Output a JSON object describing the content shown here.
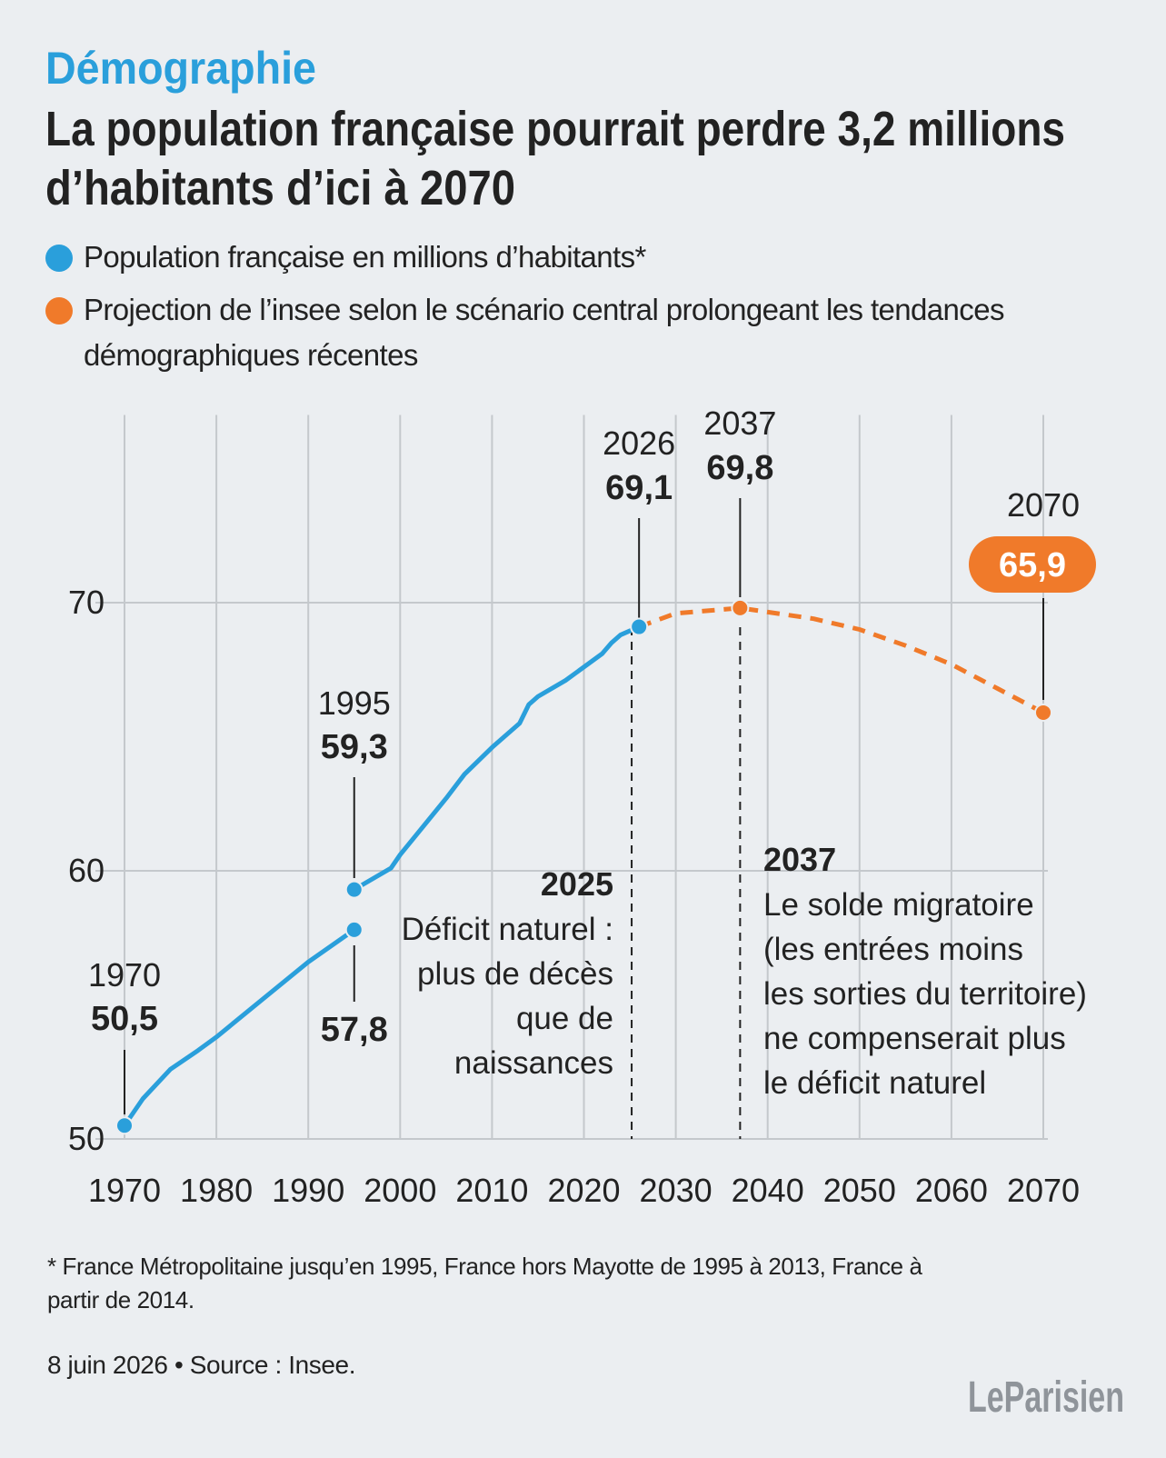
{
  "kicker": "Démographie",
  "title": [
    "La population française pourrait perdre 3,2 millions",
    "d’habitants d’ici à 2070"
  ],
  "chart_data": {
    "type": "line",
    "series": [
      {
        "name": "Population française en millions d’habitants*",
        "color": "#2a9fdb",
        "dashed": false,
        "x": [
          1970,
          1972,
          1975,
          1978,
          1980,
          1985,
          1990,
          1995,
          1995,
          1995,
          1999,
          2000,
          2005,
          2007,
          2010,
          2013,
          2014,
          2015,
          2018,
          2020,
          2022,
          2023,
          2024,
          2026
        ],
        "values": [
          50.5,
          51.5,
          52.6,
          53.3,
          53.8,
          55.2,
          56.6,
          57.8,
          null,
          59.3,
          60.1,
          60.6,
          62.7,
          63.6,
          64.6,
          65.5,
          66.2,
          66.5,
          67.1,
          67.6,
          68.1,
          68.5,
          68.8,
          69.1
        ]
      },
      {
        "name": "Projection de l’insee selon le scénario central prolongeant les tendances démographiques récentes",
        "color": "#f07a2a",
        "dashed": true,
        "x": [
          2026,
          2030,
          2037,
          2045,
          2050,
          2055,
          2060,
          2065,
          2070
        ],
        "values": [
          69.1,
          69.6,
          69.8,
          69.4,
          69.0,
          68.4,
          67.7,
          66.8,
          65.9
        ]
      }
    ],
    "callouts": [
      {
        "x": 1970,
        "value": 50.5,
        "value_label": "50,5"
      },
      {
        "x": 1995,
        "value": 59.3,
        "value_label": "59,3"
      },
      {
        "x": 1995,
        "value": 57.8,
        "value_label": "57,8"
      },
      {
        "x": 2026,
        "value": 69.1,
        "value_label": "69,1"
      },
      {
        "x": 2037,
        "value": 69.8,
        "value_label": "69,8"
      },
      {
        "x": 2070,
        "value": 65.9,
        "value_label": "65,9"
      }
    ],
    "annotations": [
      {
        "x": 2025,
        "lines": [
          "Déficit naturel :",
          "plus de décès",
          "que de",
          "naissances"
        ]
      },
      {
        "x": 2037,
        "lines": [
          "Le solde migratoire",
          "(les entrées moins",
          "les sorties du territoire)",
          "ne compenserait plus",
          "le déficit naturel"
        ]
      }
    ],
    "xlim": [
      1970,
      2070
    ],
    "xticks": [
      1970,
      1980,
      1990,
      2000,
      2010,
      2020,
      2030,
      2040,
      2050,
      2060,
      2070
    ],
    "ylim": [
      50,
      77
    ],
    "yticks": [
      50,
      60,
      70
    ],
    "grid": true
  },
  "footnote": "* France Métropolitaine jusqu’en 1995, France hors Mayotte de 1995 à 2013, France à partir de 2014.",
  "source": "8 juin 2026 • Source : Insee.",
  "logo": "LeParisien"
}
